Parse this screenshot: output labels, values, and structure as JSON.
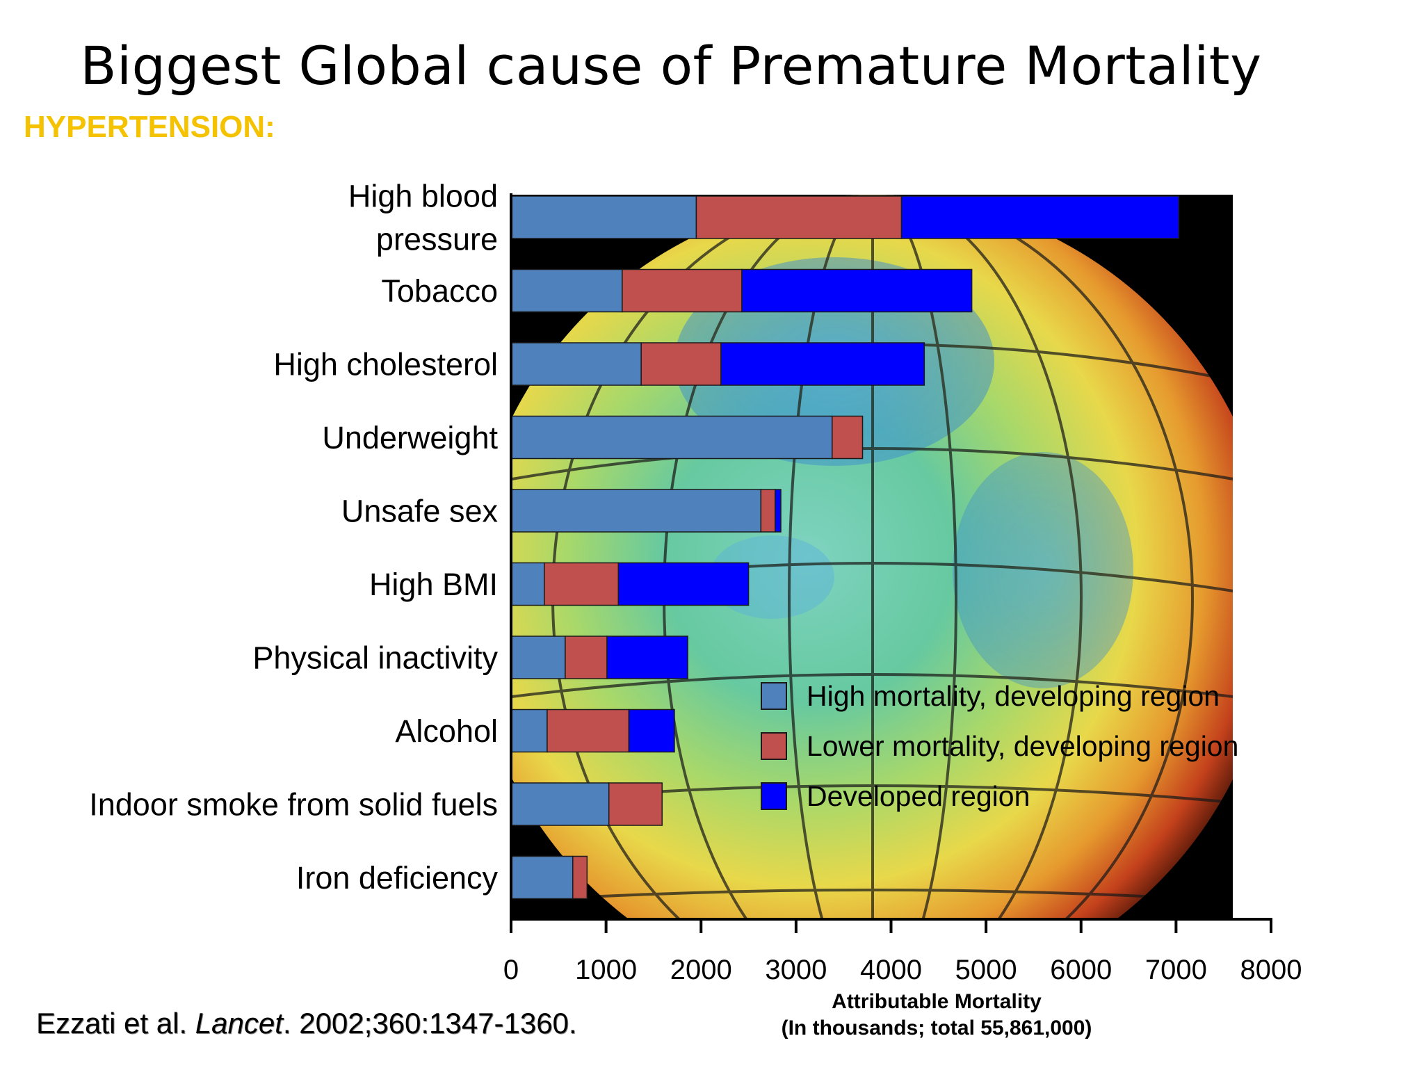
{
  "slide": {
    "title": "Biggest Global cause of Premature Mortality",
    "subtitle": "HYPERTENSION:",
    "citation_authors": "Ezzati et al. ",
    "citation_journal": "Lancet",
    "citation_rest": ". 2002;360:1347-1360."
  },
  "chart_data": {
    "type": "bar",
    "orientation": "horizontal",
    "stacked": true,
    "categories": [
      "High blood pressure",
      "Tobacco",
      "High cholesterol",
      "Underweight",
      "Unsafe sex",
      "High BMI",
      "Physical inactivity",
      "Alcohol",
      "Indoor smoke from solid fuels",
      "Iron deficiency"
    ],
    "category_lines": [
      [
        "High blood",
        "pressure"
      ],
      [
        "Tobacco"
      ],
      [
        "High cholesterol"
      ],
      [
        "Underweight"
      ],
      [
        "Unsafe sex"
      ],
      [
        "High BMI"
      ],
      [
        "Physical inactivity"
      ],
      [
        "Alcohol"
      ],
      [
        "Indoor smoke from solid fuels"
      ],
      [
        "Iron deficiency"
      ]
    ],
    "series": [
      {
        "name": "High mortality, developing region",
        "color": "#4f81bd",
        "values": [
          1950,
          1170,
          1370,
          3380,
          2630,
          350,
          570,
          380,
          1030,
          650
        ]
      },
      {
        "name": "Lower mortality, developing region",
        "color": "#c0504d",
        "values": [
          2160,
          1260,
          840,
          320,
          150,
          780,
          440,
          860,
          560,
          150
        ]
      },
      {
        "name": "Developed region",
        "color": "#0000ff",
        "values": [
          2920,
          2420,
          2140,
          0,
          60,
          1370,
          850,
          480,
          0,
          0
        ]
      }
    ],
    "xlim": [
      0,
      8000
    ],
    "xticks": [
      "0",
      "1000",
      "2000",
      "3000",
      "4000",
      "5000",
      "6000",
      "7000",
      "8000"
    ],
    "xlabel_line1": "Attributable Mortality",
    "xlabel_line2": "(In thousands; total 55,861,000)",
    "legend_position": "right, inside plot",
    "background": "globe image"
  }
}
